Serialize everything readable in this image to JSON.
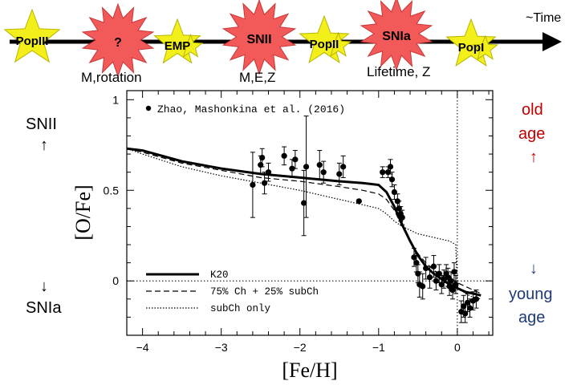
{
  "timeline": {
    "time_label": "~Time",
    "stars": [
      {
        "label": "PopIII",
        "shape": "star"
      },
      {
        "label": "?",
        "shape": "burst"
      },
      {
        "label": "EMP",
        "shape": "star"
      },
      {
        "label": "SNII",
        "shape": "burst"
      },
      {
        "label": "PopII",
        "shape": "star"
      },
      {
        "label": "SNIa",
        "shape": "burst"
      },
      {
        "label": "PopI",
        "shape": "star"
      }
    ],
    "annotations": {
      "unknown": "M,rotation",
      "snii": "M,E,Z",
      "snia": "Lifetime, Z"
    }
  },
  "side_labels": {
    "left_top": "SNII",
    "left_bottom": "SNIa",
    "up_arrow": "↑",
    "down_arrow": "↓",
    "right_top_line1": "old",
    "right_top_line2": "age",
    "right_bottom_line1": "young",
    "right_bottom_line2": "age"
  },
  "colors": {
    "star_fill": "#f2ef1a",
    "star_stroke": "#b7b400",
    "burst_fill": "#f25a5a",
    "burst_stroke": "#c83535",
    "old_age": "#c00000",
    "young_age": "#1f3a78"
  },
  "chart_data": {
    "type": "scatter",
    "title": "",
    "xlabel": "[Fe/H]",
    "ylabel": "[O/Fe]",
    "xlim": [
      -4.2,
      0.45
    ],
    "ylim": [
      -0.3,
      1.05
    ],
    "x_ticks": [
      -4,
      -3,
      -2,
      -1,
      0
    ],
    "x_tick_labels": [
      "−4",
      "−3",
      "−2",
      "−1",
      "0"
    ],
    "y_ticks": [
      0,
      0.5,
      1
    ],
    "y_tick_labels": [
      "0",
      "0.5",
      "1"
    ],
    "reference_lines": {
      "hline_y": 0,
      "vline_x": 0
    },
    "observations": {
      "name": "Zhao, Mashonkina et al. (2016)",
      "points": [
        {
          "x": -2.6,
          "y": 0.53,
          "err": 0.18
        },
        {
          "x": -2.5,
          "y": 0.64,
          "err": 0.05
        },
        {
          "x": -2.48,
          "y": 0.68,
          "err": 0.05
        },
        {
          "x": -2.45,
          "y": 0.54,
          "err": 0.06
        },
        {
          "x": -2.4,
          "y": 0.6,
          "err": 0.05
        },
        {
          "x": -2.2,
          "y": 0.69,
          "err": 0.05
        },
        {
          "x": -2.1,
          "y": 0.62,
          "err": 0.05
        },
        {
          "x": -2.06,
          "y": 0.67,
          "err": 0.05
        },
        {
          "x": -1.95,
          "y": 0.43,
          "err": 0.18
        },
        {
          "x": -1.92,
          "y": 0.63,
          "err": 0.28
        },
        {
          "x": -1.75,
          "y": 0.64,
          "err": 0.08
        },
        {
          "x": -1.7,
          "y": 0.6,
          "err": 0.06
        },
        {
          "x": -1.5,
          "y": 0.59,
          "err": 0.06
        },
        {
          "x": -1.45,
          "y": 0.63,
          "err": 0.06
        },
        {
          "x": -1.25,
          "y": 0.44,
          "err": 0.0
        },
        {
          "x": -0.95,
          "y": 0.6,
          "err": 0.03
        },
        {
          "x": -0.88,
          "y": 0.6,
          "err": 0.03
        },
        {
          "x": -0.85,
          "y": 0.63,
          "err": 0.04
        },
        {
          "x": -0.83,
          "y": 0.56,
          "err": 0.04
        },
        {
          "x": -0.8,
          "y": 0.49,
          "err": 0.04
        },
        {
          "x": -0.76,
          "y": 0.44,
          "err": 0.04
        },
        {
          "x": -0.74,
          "y": 0.4,
          "err": 0.04
        },
        {
          "x": -0.72,
          "y": 0.37,
          "err": 0.04
        },
        {
          "x": -0.7,
          "y": 0.35,
          "err": 0.04
        },
        {
          "x": -0.55,
          "y": 0.13,
          "err": 0.05
        },
        {
          "x": -0.52,
          "y": 0.1,
          "err": 0.05
        },
        {
          "x": -0.5,
          "y": 0.04,
          "err": 0.05
        },
        {
          "x": -0.48,
          "y": -0.02,
          "err": 0.07
        },
        {
          "x": -0.44,
          "y": -0.03,
          "err": 0.07
        },
        {
          "x": -0.4,
          "y": 0.07,
          "err": 0.06
        },
        {
          "x": -0.35,
          "y": 0.02,
          "err": 0.06
        },
        {
          "x": -0.3,
          "y": 0.08,
          "err": 0.06
        },
        {
          "x": -0.27,
          "y": 0.0,
          "err": 0.05
        },
        {
          "x": -0.23,
          "y": 0.04,
          "err": 0.05
        },
        {
          "x": -0.2,
          "y": -0.02,
          "err": 0.05
        },
        {
          "x": -0.17,
          "y": 0.01,
          "err": 0.05
        },
        {
          "x": -0.14,
          "y": 0.04,
          "err": 0.05
        },
        {
          "x": -0.12,
          "y": 0.02,
          "err": 0.05
        },
        {
          "x": -0.1,
          "y": -0.03,
          "err": 0.05
        },
        {
          "x": -0.08,
          "y": 0.0,
          "err": 0.05
        },
        {
          "x": -0.06,
          "y": -0.05,
          "err": 0.05
        },
        {
          "x": -0.04,
          "y": 0.05,
          "err": 0.05
        },
        {
          "x": -0.02,
          "y": -0.02,
          "err": 0.05
        },
        {
          "x": 0.05,
          "y": -0.17,
          "err": 0.06
        },
        {
          "x": 0.08,
          "y": -0.14,
          "err": 0.06
        },
        {
          "x": 0.1,
          "y": -0.18,
          "err": 0.05
        },
        {
          "x": 0.13,
          "y": -0.12,
          "err": 0.05
        },
        {
          "x": 0.16,
          "y": -0.15,
          "err": 0.05
        },
        {
          "x": 0.2,
          "y": -0.11,
          "err": 0.05
        },
        {
          "x": 0.24,
          "y": -0.1,
          "err": 0.05
        }
      ]
    },
    "series": [
      {
        "name": "K20",
        "style": "solid",
        "x": [
          -4.2,
          -4.0,
          -3.5,
          -3.0,
          -2.5,
          -2.0,
          -1.5,
          -1.2,
          -1.0,
          -0.9,
          -0.8,
          -0.7,
          -0.6,
          -0.5,
          -0.4,
          -0.3,
          -0.2,
          -0.1,
          0.0,
          0.1,
          0.2,
          0.3
        ],
        "y": [
          0.73,
          0.72,
          0.66,
          0.62,
          0.59,
          0.57,
          0.55,
          0.54,
          0.53,
          0.49,
          0.41,
          0.31,
          0.22,
          0.14,
          0.08,
          0.04,
          0.01,
          -0.02,
          -0.04,
          -0.06,
          -0.07,
          -0.08
        ]
      },
      {
        "name": "75% Ch + 25% subCh",
        "style": "dashed",
        "x": [
          -4.2,
          -4.0,
          -3.5,
          -3.0,
          -2.5,
          -2.0,
          -1.5,
          -1.2,
          -1.0,
          -0.9,
          -0.8,
          -0.7,
          -0.6,
          -0.5,
          -0.4,
          -0.3,
          -0.2,
          -0.1,
          0.0,
          0.1,
          0.2,
          0.3
        ],
        "y": [
          0.73,
          0.71,
          0.65,
          0.61,
          0.57,
          0.55,
          0.52,
          0.5,
          0.48,
          0.45,
          0.39,
          0.3,
          0.22,
          0.15,
          0.1,
          0.06,
          0.03,
          0.01,
          -0.01,
          -0.03,
          -0.05,
          -0.07
        ]
      },
      {
        "name": "subCh only",
        "style": "dotted",
        "x": [
          -4.2,
          -4.0,
          -3.5,
          -3.0,
          -2.5,
          -2.0,
          -1.5,
          -1.2,
          -1.0,
          -0.9,
          -0.8,
          -0.7,
          -0.6,
          -0.5,
          -0.4,
          -0.3,
          -0.2,
          -0.1,
          -0.02,
          0.0,
          0.1,
          0.2,
          0.3
        ],
        "y": [
          0.73,
          0.7,
          0.63,
          0.58,
          0.54,
          0.5,
          0.45,
          0.42,
          0.4,
          0.37,
          0.33,
          0.3,
          0.28,
          0.26,
          0.25,
          0.24,
          0.23,
          0.22,
          0.2,
          -0.03,
          -0.07,
          -0.09,
          -0.1
        ]
      }
    ],
    "legend": {
      "position": "bottom-left",
      "observations_position": "top-left"
    }
  }
}
